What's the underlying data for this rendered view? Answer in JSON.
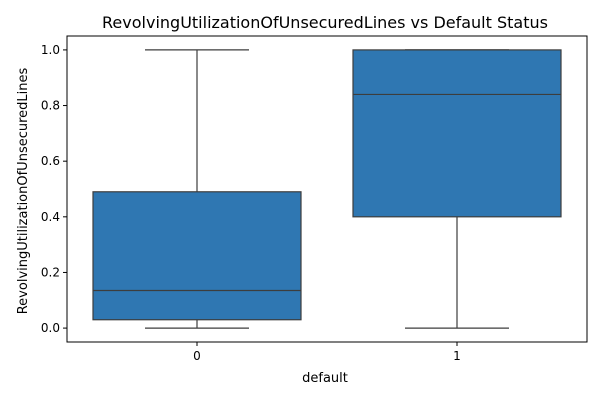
{
  "chart_data": {
    "type": "box",
    "title": "RevolvingUtilizationOfUnsecuredLines vs Default Status",
    "xlabel": "default",
    "ylabel": "RevolvingUtilizationOfUnsecuredLines",
    "categories": [
      "0",
      "1"
    ],
    "ylim": [
      -0.05,
      1.05
    ],
    "yticks": [
      "0.0",
      "0.2",
      "0.4",
      "0.6",
      "0.8",
      "1.0"
    ],
    "grid": false,
    "box_color": "#2f77b2",
    "edge_color": "#3d3d3d",
    "boxes": [
      {
        "category": "0",
        "whisker_low": 0.0,
        "q1": 0.03,
        "median": 0.135,
        "q3": 0.49,
        "whisker_high": 1.0
      },
      {
        "category": "1",
        "whisker_low": 0.0,
        "q1": 0.4,
        "median": 0.84,
        "q3": 1.0,
        "whisker_high": 1.0
      }
    ]
  }
}
